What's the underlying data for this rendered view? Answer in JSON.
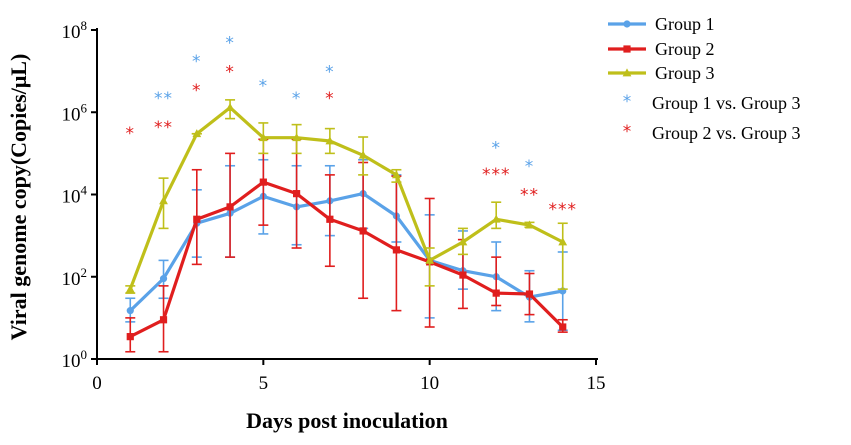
{
  "chart_data": {
    "type": "line",
    "title": "",
    "xlabel": "Days post inoculation",
    "ylabel": "Viral genome copy(Copies/μL)",
    "xlim": [
      0,
      15
    ],
    "ylim_log10": [
      0,
      8
    ],
    "yscale": "log10",
    "x_ticks": [
      0,
      5,
      10,
      15
    ],
    "y_ticks": [
      {
        "exp": 0,
        "base": "10",
        "sup": "0"
      },
      {
        "exp": 2,
        "base": "10",
        "sup": "2"
      },
      {
        "exp": 4,
        "base": "10",
        "sup": "4"
      },
      {
        "exp": 6,
        "base": "10",
        "sup": "6"
      },
      {
        "exp": 8,
        "base": "10",
        "sup": "8"
      }
    ],
    "series": [
      {
        "name": "Group 1",
        "color": "#5aa2e8",
        "marker": "circle",
        "x": [
          1,
          2,
          3,
          4,
          5,
          6,
          7,
          8,
          9,
          10,
          11,
          12,
          13,
          14
        ],
        "values": [
          15,
          90,
          2000,
          3500,
          9000,
          5000,
          7000,
          10500,
          3000,
          250,
          140,
          100,
          32,
          45
        ],
        "err_low": [
          8,
          30,
          300,
          300,
          1100,
          600,
          1000,
          1500,
          700,
          10,
          50,
          15,
          8,
          5
        ],
        "err_high": [
          30,
          250,
          13000,
          50000,
          70000,
          50000,
          50000,
          70000,
          30000,
          3200,
          1300,
          700,
          140,
          400
        ]
      },
      {
        "name": "Group 2",
        "color": "#e01e1e",
        "marker": "square",
        "x": [
          1,
          2,
          3,
          4,
          5,
          6,
          7,
          8,
          9,
          10,
          11,
          12,
          13,
          14
        ],
        "values": [
          3.5,
          9,
          2500,
          5000,
          20000,
          10500,
          2500,
          1300,
          450,
          230,
          110,
          40,
          38,
          6
        ],
        "err_low": [
          1.5,
          1.5,
          200,
          300,
          1800,
          500,
          180,
          30,
          15,
          6,
          17,
          20,
          12,
          4.5
        ],
        "err_high": [
          10,
          60,
          40000,
          100000,
          220000,
          220000,
          30000,
          60000,
          28000,
          8000,
          800,
          300,
          120,
          9
        ]
      },
      {
        "name": "Group 3",
        "color": "#bfbf1a",
        "marker": "triangle",
        "x": [
          1,
          2,
          3,
          4,
          5,
          6,
          7,
          8,
          9,
          10,
          11,
          12,
          13,
          14
        ],
        "values": [
          50,
          7000,
          300000,
          1300000,
          240000,
          240000,
          200000,
          90000,
          30000,
          250,
          700,
          2500,
          1800,
          700
        ],
        "err_low": [
          40,
          1500,
          300000,
          700000,
          100000,
          100000,
          100000,
          30000,
          20000,
          60,
          350,
          1500,
          1600,
          50
        ],
        "err_high": [
          60,
          25000,
          300000,
          2000000,
          550000,
          500000,
          400000,
          250000,
          40000,
          500,
          1500,
          6500,
          2100,
          2000
        ]
      }
    ],
    "legend": {
      "position": "top-right",
      "entries": [
        "Group 1",
        "Group 2",
        "Group 3"
      ],
      "significance": [
        {
          "label": "Group 1 vs. Group 3",
          "symbol": "*",
          "color": "#5aa2e8"
        },
        {
          "label": "Group 2 vs. Group 3",
          "symbol": "*",
          "color": "#e01e1e"
        }
      ]
    },
    "annotations": [
      {
        "x": 1,
        "text": "*",
        "color": "#e01e1e",
        "log_y": 5.35
      },
      {
        "x": 2,
        "text": "**",
        "color": "#5aa2e8",
        "log_y": 6.2
      },
      {
        "x": 2,
        "text": "**",
        "color": "#e01e1e",
        "log_y": 5.5
      },
      {
        "x": 3,
        "text": "*",
        "color": "#5aa2e8",
        "log_y": 7.1
      },
      {
        "x": 3,
        "text": "*",
        "color": "#e01e1e",
        "log_y": 6.4
      },
      {
        "x": 4,
        "text": "*",
        "color": "#5aa2e8",
        "log_y": 7.55
      },
      {
        "x": 4,
        "text": "*",
        "color": "#e01e1e",
        "log_y": 6.85
      },
      {
        "x": 5,
        "text": "*",
        "color": "#5aa2e8",
        "log_y": 6.5
      },
      {
        "x": 6,
        "text": "*",
        "color": "#5aa2e8",
        "log_y": 6.2
      },
      {
        "x": 7,
        "text": "*",
        "color": "#5aa2e8",
        "log_y": 6.85
      },
      {
        "x": 7,
        "text": "*",
        "color": "#e01e1e",
        "log_y": 6.2
      },
      {
        "x": 12,
        "text": "*",
        "color": "#5aa2e8",
        "log_y": 5.0
      },
      {
        "x": 12,
        "text": "***",
        "color": "#e01e1e",
        "log_y": 4.35
      },
      {
        "x": 13,
        "text": "*",
        "color": "#5aa2e8",
        "log_y": 4.55
      },
      {
        "x": 13,
        "text": "**",
        "color": "#e01e1e",
        "log_y": 3.85
      },
      {
        "x": 14,
        "text": "***",
        "color": "#e01e1e",
        "log_y": 3.5
      }
    ]
  }
}
